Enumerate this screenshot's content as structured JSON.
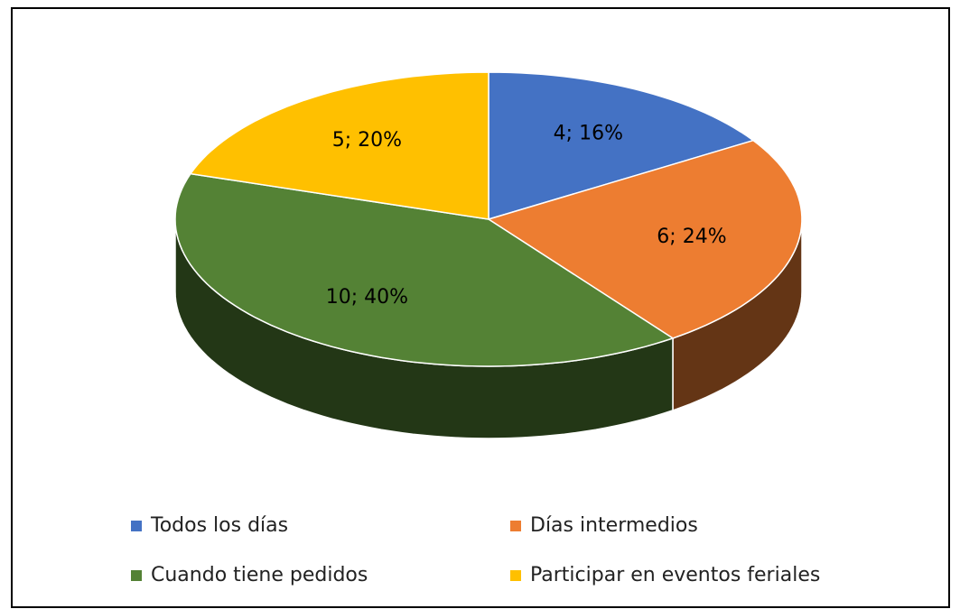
{
  "chart_data": {
    "type": "pie3d",
    "categories": [
      "Todos los días",
      "Días intermedios",
      "Cuando tiene pedidos",
      "Participar en eventos feriales"
    ],
    "values": [
      4,
      6,
      10,
      5
    ],
    "value_labels": [
      "4; 16%",
      "6; 24%",
      "10; 40%",
      "5; 20%"
    ],
    "colors": [
      "#4472c4",
      "#ed7d31",
      "#548235",
      "#ffc000"
    ],
    "legend": "bottom"
  }
}
